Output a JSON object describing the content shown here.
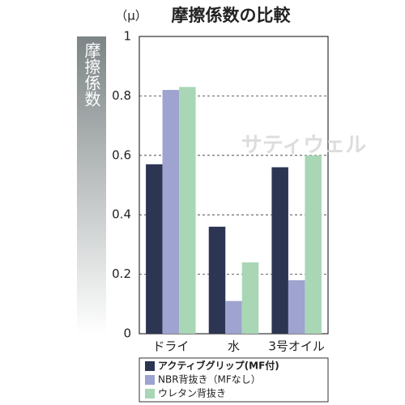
{
  "chart_data": {
    "type": "bar",
    "title": "摩擦係数の比較",
    "unit": "（μ）",
    "y_label": "摩擦係数",
    "watermark": "サティウェル",
    "categories": [
      "ドライ",
      "水",
      "3号オイル"
    ],
    "series": [
      {
        "name": "アクティブグリップ(MF付)",
        "color": "#2c3552",
        "values": [
          0.57,
          0.36,
          0.56
        ]
      },
      {
        "name": "NBR背抜き（MFなし）",
        "color": "#9ea3cf",
        "values": [
          0.82,
          0.11,
          0.18
        ]
      },
      {
        "name": "ウレタン背抜き",
        "color": "#a9d6b5",
        "values": [
          0.83,
          0.24,
          0.6
        ]
      }
    ],
    "ylim": [
      0,
      1
    ],
    "yticks": [
      0,
      0.2,
      0.4,
      0.6,
      0.8,
      1
    ],
    "grid": true
  }
}
